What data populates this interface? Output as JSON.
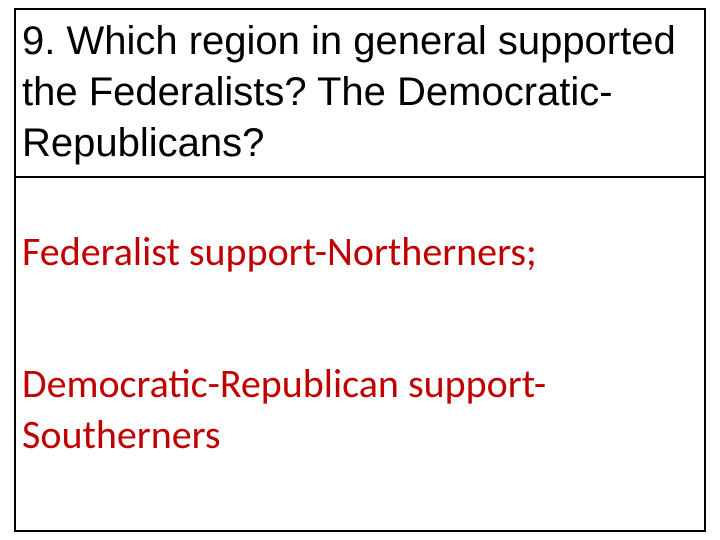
{
  "slide": {
    "question": "9. Which region in general supported the Federalists? The Democratic-Republicans?",
    "answer1": "Federalist support-Northerners;",
    "answer2_line1": "Democratic-Republican support-",
    "answer2_line2": "Southerners",
    "colors": {
      "text": "#000000",
      "answer": "#c00000",
      "border": "#000000",
      "background": "#ffffff"
    },
    "fontsizes": {
      "question": 40,
      "answer": 40
    }
  }
}
